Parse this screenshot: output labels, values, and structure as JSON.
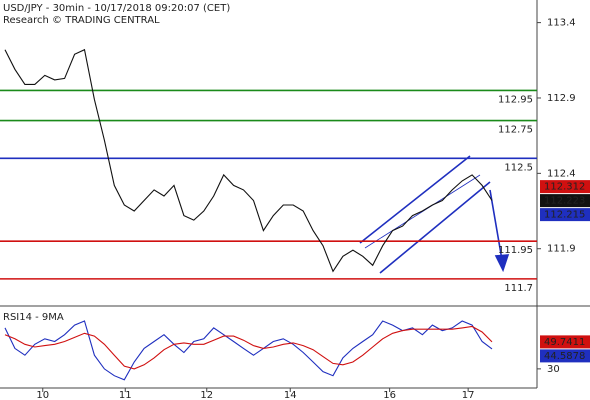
{
  "header": {
    "title": "USD/JPY - 30min - 10/17/2018 09:20:07 (CET)",
    "source": "Research © TRADING CENTRAL"
  },
  "chart_data": [
    {
      "type": "line",
      "xlim": [
        0,
        49
      ],
      "xticks": [
        {
          "value": 3.8,
          "label": "10"
        },
        {
          "value": 12.1,
          "label": "11"
        },
        {
          "value": 20.3,
          "label": "12"
        },
        {
          "value": 28.7,
          "label": "14"
        },
        {
          "value": 38.7,
          "label": "16"
        },
        {
          "value": 46.6,
          "label": "17"
        }
      ],
      "ylim": [
        111.52,
        113.55
      ],
      "yticks": [
        111.9,
        112.4,
        112.9,
        113.4
      ],
      "series": [
        {
          "color": "#111111",
          "values": [
            113.22,
            113.09,
            112.99,
            112.99,
            113.05,
            113.02,
            113.03,
            113.19,
            113.22,
            112.89,
            112.62,
            112.32,
            112.19,
            112.15,
            112.22,
            112.29,
            112.25,
            112.32,
            112.12,
            112.09,
            112.15,
            112.25,
            112.39,
            112.32,
            112.29,
            112.22,
            112.02,
            112.12,
            112.19,
            112.19,
            112.15,
            112.02,
            111.92,
            111.75,
            111.85,
            111.89,
            111.85,
            111.79,
            111.92,
            112.02,
            112.05,
            112.12,
            112.15,
            112.19,
            112.22,
            112.29,
            112.35,
            112.39,
            112.32,
            112.22
          ]
        }
      ],
      "levels": [
        {
          "value": 112.95,
          "color": "#1a8a1a"
        },
        {
          "value": 112.75,
          "color": "#1a8a1a"
        },
        {
          "value": 112.5,
          "color": "#1f2fbf"
        },
        {
          "value": 111.95,
          "color": "#d01010"
        },
        {
          "value": 111.7,
          "color": "#d01010"
        }
      ],
      "price_markers": [
        {
          "value": 112.312,
          "color": "#d01010"
        },
        {
          "value": 112.223,
          "color": "#111111"
        },
        {
          "value": 112.215,
          "color": "#1f2fbf"
        }
      ]
    },
    {
      "type": "line",
      "title": "RSI14 - 9MA",
      "xlim": [
        0,
        49
      ],
      "ylim": [
        16,
        76
      ],
      "yticks": [
        30
      ],
      "series": [
        {
          "color": "#1f2fbf",
          "values": [
            60,
            45,
            40,
            48,
            52,
            50,
            55,
            62,
            65,
            40,
            30,
            25,
            22,
            35,
            45,
            50,
            55,
            48,
            42,
            50,
            52,
            60,
            55,
            50,
            45,
            40,
            45,
            50,
            52,
            48,
            42,
            35,
            28,
            25,
            38,
            45,
            50,
            55,
            65,
            62,
            58,
            60,
            55,
            62,
            58,
            60,
            65,
            62,
            50,
            44.5878
          ]
        },
        {
          "color": "#d01010",
          "values": [
            55,
            52,
            48,
            46,
            47,
            48,
            50,
            53,
            56,
            54,
            48,
            40,
            32,
            30,
            33,
            38,
            44,
            48,
            49,
            48,
            48,
            51,
            54,
            54,
            51,
            47,
            45,
            46,
            48,
            49,
            47,
            44,
            39,
            34,
            33,
            35,
            40,
            46,
            52,
            56,
            58,
            59,
            59,
            59,
            59,
            59,
            60,
            61,
            57,
            49.7411
          ]
        }
      ],
      "markers": [
        {
          "value": 49.7411,
          "color": "#d01010"
        },
        {
          "value": 44.5878,
          "color": "#1f2fbf"
        }
      ]
    }
  ]
}
